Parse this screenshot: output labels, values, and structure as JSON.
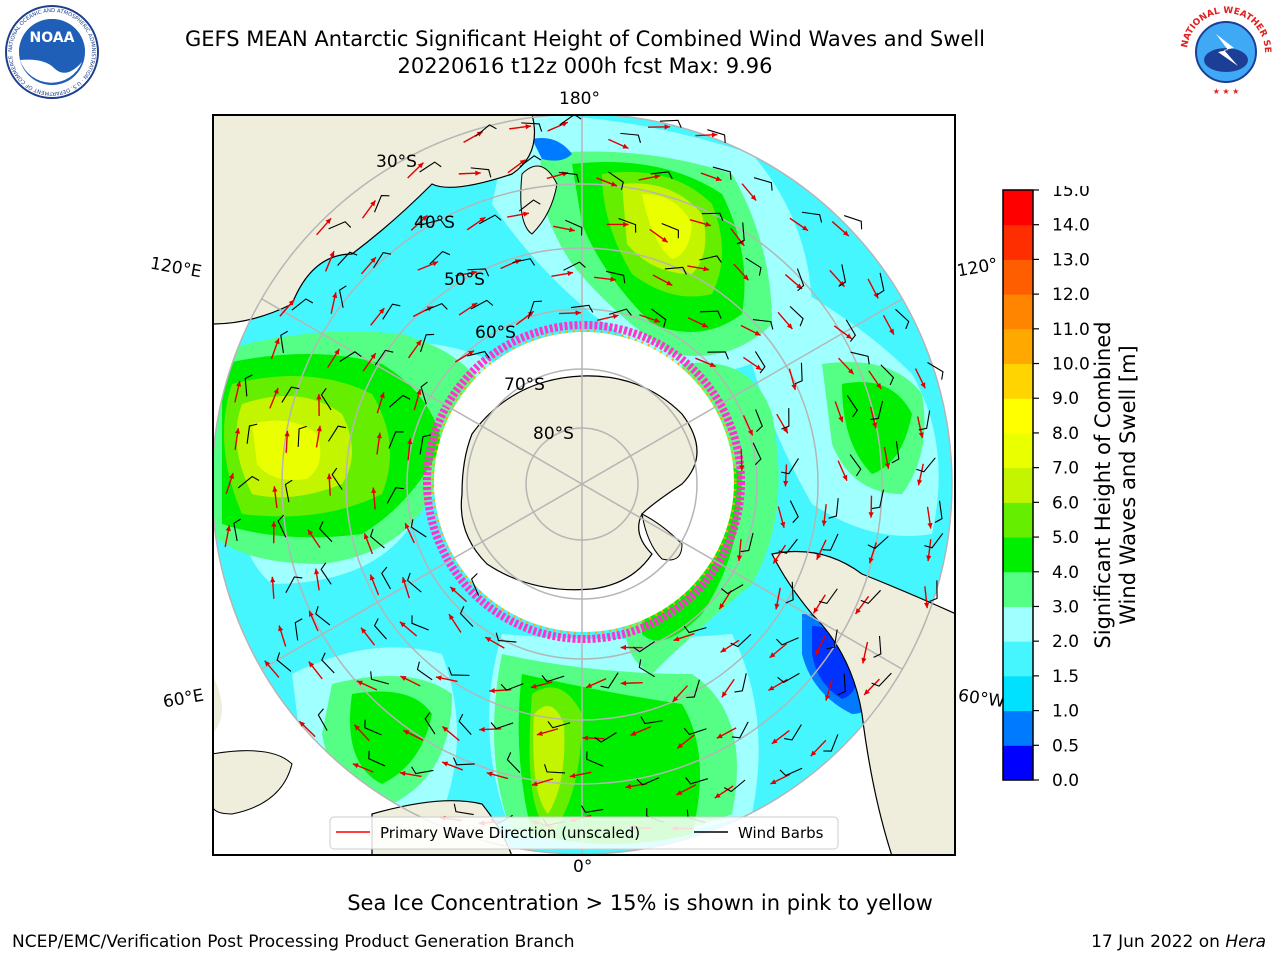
{
  "title_line1": "GEFS MEAN Antarctic Significant Height of Combined Wind Waves and Swell",
  "title_line2": "20220616 t12z 000h fcst   Max: 9.96",
  "logos": {
    "left": {
      "name": "noaa-logo",
      "text": "NOAA",
      "ring_text": "NATIONAL OCEANIC AND ATMOSPHERIC ADMINISTRATION · U.S. DEPARTMENT OF COMMERCE"
    },
    "right": {
      "name": "nws-logo",
      "ring_text": "NATIONAL WEATHER SERVICE"
    }
  },
  "map": {
    "projection": "south polar stereographic",
    "longitude_labels": {
      "top": "180°",
      "left_upper": "120°E",
      "right_upper": "120°",
      "left_lower": "60°E",
      "right_lower": "60°W",
      "bottom": "0°"
    },
    "latitude_labels": [
      "30°S",
      "40°S",
      "50°S",
      "60°S",
      "70°S",
      "80°S"
    ],
    "legend": {
      "primary_wave": "Primary Wave Direction (unscaled)",
      "wind_barbs": "Wind Barbs"
    },
    "colors": {
      "land": "#efeddb",
      "grid": "#b5b5b5",
      "arrow": "#ff0000",
      "barb": "#000000",
      "ice_edge": "#ff33cc"
    }
  },
  "colorbar": {
    "label_line1": "Significant Height of Combined",
    "label_line2": "Wind Waves and Swell [m]",
    "ticks": [
      "0.0",
      "0.5",
      "1.0",
      "1.5",
      "2.0",
      "3.0",
      "4.0",
      "5.0",
      "6.0",
      "7.0",
      "8.0",
      "9.0",
      "10.0",
      "11.0",
      "12.0",
      "13.0",
      "14.0",
      "15.0"
    ],
    "colors": [
      "#0000ff",
      "#007bff",
      "#00e0ff",
      "#46f6ff",
      "#a0ffff",
      "#55ff86",
      "#00ee00",
      "#66ee00",
      "#c3f500",
      "#eaff00",
      "#ffff00",
      "#ffd400",
      "#ffa800",
      "#ff8500",
      "#ff5e00",
      "#ff2e00",
      "#ff0000"
    ]
  },
  "footnote": "Sea Ice Concentration > 15% is shown in pink to yellow",
  "credit": "NCEP/EMC/Verification Post Processing Product Generation Branch",
  "date_prefix": "17 Jun 2022 on ",
  "date_host": "Hera"
}
